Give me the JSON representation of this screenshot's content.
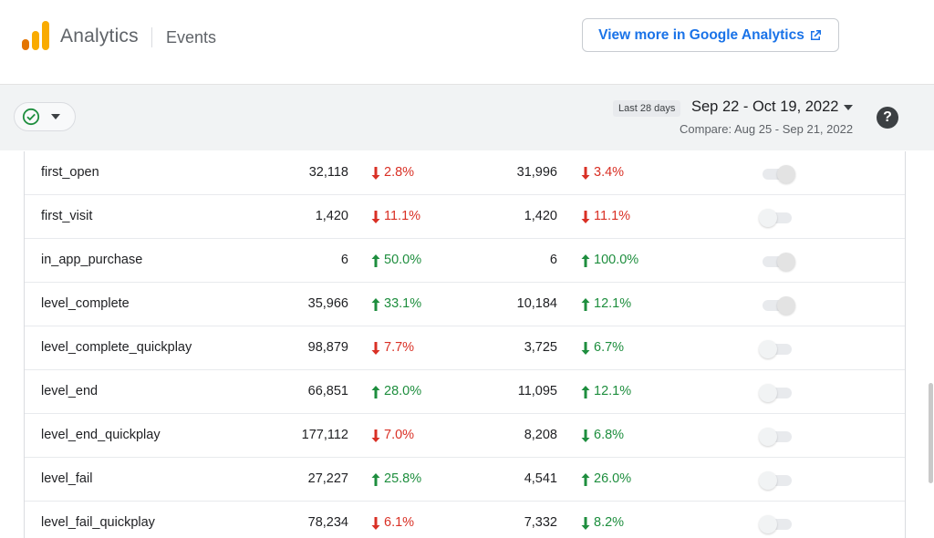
{
  "header": {
    "app_name": "Analytics",
    "section": "Events",
    "view_more_label": "View more in Google Analytics"
  },
  "toolbar": {
    "date_chip": "Last 28 days",
    "date_range": "Sep 22 - Oct 19, 2022",
    "compare": "Compare: Aug 25 - Sep 21, 2022",
    "help": "?"
  },
  "colors": {
    "accent": "#1a73e8",
    "up": "#1e8e3e",
    "down": "#d93025",
    "logo_orange": "#f9ab00",
    "logo_dark_orange": "#e37400"
  },
  "rows": [
    {
      "name": "first_open",
      "v1": "32,118",
      "c1": "2.8%",
      "c1_dir": "down",
      "c1_color": "down",
      "v2": "31,996",
      "c2": "3.4%",
      "c2_dir": "down",
      "c2_color": "down",
      "toggle": "on"
    },
    {
      "name": "first_visit",
      "v1": "1,420",
      "c1": "11.1%",
      "c1_dir": "down",
      "c1_color": "down",
      "v2": "1,420",
      "c2": "11.1%",
      "c2_dir": "down",
      "c2_color": "down",
      "toggle": "off"
    },
    {
      "name": "in_app_purchase",
      "v1": "6",
      "c1": "50.0%",
      "c1_dir": "up",
      "c1_color": "up",
      "v2": "6",
      "c2": "100.0%",
      "c2_dir": "up",
      "c2_color": "up",
      "toggle": "on"
    },
    {
      "name": "level_complete",
      "v1": "35,966",
      "c1": "33.1%",
      "c1_dir": "up",
      "c1_color": "up",
      "v2": "10,184",
      "c2": "12.1%",
      "c2_dir": "up",
      "c2_color": "up",
      "toggle": "on"
    },
    {
      "name": "level_complete_quickplay",
      "v1": "98,879",
      "c1": "7.7%",
      "c1_dir": "down",
      "c1_color": "down",
      "v2": "3,725",
      "c2": "6.7%",
      "c2_dir": "down",
      "c2_color": "up",
      "toggle": "off"
    },
    {
      "name": "level_end",
      "v1": "66,851",
      "c1": "28.0%",
      "c1_dir": "up",
      "c1_color": "up",
      "v2": "11,095",
      "c2": "12.1%",
      "c2_dir": "up",
      "c2_color": "up",
      "toggle": "off"
    },
    {
      "name": "level_end_quickplay",
      "v1": "177,112",
      "c1": "7.0%",
      "c1_dir": "down",
      "c1_color": "down",
      "v2": "8,208",
      "c2": "6.8%",
      "c2_dir": "down",
      "c2_color": "up",
      "toggle": "off"
    },
    {
      "name": "level_fail",
      "v1": "27,227",
      "c1": "25.8%",
      "c1_dir": "up",
      "c1_color": "up",
      "v2": "4,541",
      "c2": "26.0%",
      "c2_dir": "up",
      "c2_color": "up",
      "toggle": "off"
    },
    {
      "name": "level_fail_quickplay",
      "v1": "78,234",
      "c1": "6.1%",
      "c1_dir": "down",
      "c1_color": "down",
      "v2": "7,332",
      "c2": "8.2%",
      "c2_dir": "down",
      "c2_color": "up",
      "toggle": "off"
    }
  ]
}
